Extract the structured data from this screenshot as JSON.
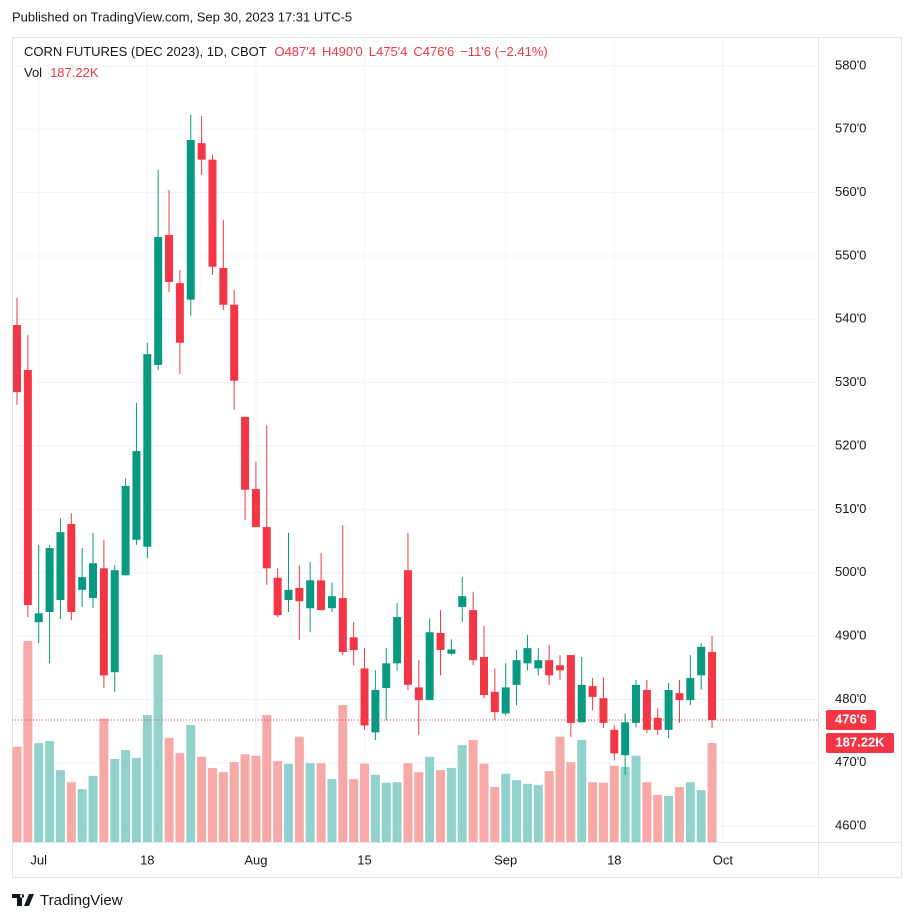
{
  "chart_data": {
    "type": "candlestick",
    "published": "Published on TradingView.com, Sep 30, 2023 17:31 UTC-5",
    "title": "CORN FUTURES (DEC 2023), 1D, CBOT",
    "open_label": "O487'4",
    "high_label": "H490'0",
    "low_label": "L475'4",
    "close_label": "C476'6",
    "change_label": "−11'6 (−2.41%)",
    "volume_title": "Vol",
    "volume_label": "187.22K",
    "last_price_label": "476'6",
    "brand": "TradingView",
    "categories": [
      null,
      null,
      "Jul",
      null,
      null,
      null,
      null,
      null,
      null,
      null,
      null,
      null,
      "18",
      null,
      null,
      null,
      null,
      null,
      null,
      null,
      null,
      null,
      "Aug",
      null,
      null,
      null,
      null,
      null,
      null,
      null,
      null,
      null,
      "15",
      null,
      null,
      null,
      null,
      null,
      null,
      null,
      null,
      null,
      null,
      null,
      null,
      "Sep",
      null,
      null,
      null,
      null,
      null,
      null,
      null,
      null,
      null,
      "18",
      null,
      null,
      null,
      null,
      null,
      null,
      null,
      null,
      null,
      "Oct"
    ],
    "open": [
      539.1,
      532.0,
      492.2,
      493.8,
      495.7,
      507.7,
      497.3,
      496.0,
      500.7,
      484.3,
      499.6,
      505.2,
      504.1,
      532.8,
      553.3,
      545.7,
      543.1,
      567.8,
      565.2,
      548.1,
      542.3,
      524.6,
      513.2,
      507.2,
      499.2,
      495.7,
      497.6,
      494.4,
      498.8,
      494.4,
      496.0,
      489.8,
      484.9,
      474.8,
      481.8,
      485.7,
      500.4,
      481.9,
      479.9,
      490.5,
      487.2,
      494.6,
      494.1,
      486.7,
      481.2,
      477.8,
      482.3,
      485.7,
      484.9,
      486.2,
      485.4,
      487.0,
      476.4,
      482.1,
      480.2,
      475.2,
      471.2,
      476.3,
      481.5,
      477.1,
      475.2,
      481.0,
      479.9,
      483.8,
      487.5,
      null
    ],
    "high": [
      543.4,
      537.5,
      504.4,
      504.4,
      508.6,
      509.4,
      503.9,
      506.3,
      505.2,
      501.2,
      514.9,
      526.8,
      536.3,
      563.6,
      560.4,
      547.8,
      572.3,
      572.1,
      566.0,
      555.7,
      544.6,
      524.6,
      517.5,
      523.3,
      500.7,
      506.3,
      501.2,
      501.7,
      503.1,
      498.5,
      507.5,
      492.2,
      488.1,
      484.6,
      488.1,
      495.2,
      506.3,
      486.2,
      492.8,
      494.1,
      489.5,
      499.3,
      497.0,
      491.6,
      484.9,
      485.7,
      487.8,
      490.2,
      488.1,
      488.6,
      487.0,
      487.0,
      486.7,
      483.4,
      483.5,
      475.9,
      477.8,
      483.1,
      483.1,
      478.6,
      482.6,
      483.1,
      487.0,
      488.9,
      490.0,
      null
    ],
    "low": [
      526.5,
      493.0,
      488.9,
      485.7,
      492.7,
      492.5,
      494.6,
      494.4,
      481.8,
      481.2,
      499.6,
      504.4,
      502.3,
      532.0,
      544.3,
      531.4,
      540.5,
      562.8,
      547.0,
      541.5,
      525.7,
      508.3,
      507.2,
      498.1,
      493.0,
      493.8,
      489.4,
      490.6,
      494.1,
      493.8,
      487.0,
      485.4,
      475.2,
      473.6,
      476.7,
      484.6,
      481.5,
      474.4,
      479.9,
      483.8,
      487.0,
      492.2,
      485.4,
      480.2,
      476.7,
      477.5,
      479.1,
      484.6,
      483.8,
      482.3,
      483.1,
      474.1,
      476.4,
      478.3,
      475.5,
      470.4,
      468.1,
      475.6,
      474.7,
      474.4,
      473.9,
      476.3,
      479.1,
      481.5,
      475.5,
      null
    ],
    "close": [
      528.5,
      494.9,
      493.6,
      503.9,
      506.4,
      493.8,
      499.3,
      501.5,
      483.8,
      500.4,
      513.7,
      519.2,
      534.5,
      553.0,
      545.9,
      536.3,
      568.3,
      565.2,
      548.3,
      542.3,
      530.3,
      513.1,
      507.2,
      500.7,
      493.3,
      497.3,
      495.5,
      498.8,
      494.1,
      496.3,
      487.5,
      487.8,
      475.9,
      481.5,
      485.7,
      493.0,
      482.3,
      479.9,
      490.6,
      487.8,
      487.9,
      496.3,
      486.2,
      480.7,
      478.0,
      481.9,
      486.2,
      488.1,
      486.2,
      483.8,
      484.6,
      476.3,
      482.3,
      480.4,
      476.3,
      471.5,
      476.4,
      482.3,
      475.2,
      475.2,
      481.5,
      479.9,
      483.4,
      488.3,
      476.75,
      null
    ],
    "volume": [
      180000,
      380000,
      187000,
      191000,
      136000,
      113000,
      100000,
      125000,
      233000,
      157000,
      174000,
      159000,
      240000,
      354000,
      197000,
      168000,
      221000,
      161000,
      140000,
      132000,
      151000,
      166000,
      163000,
      240000,
      153000,
      148000,
      199000,
      149000,
      149000,
      119000,
      259000,
      119000,
      148000,
      127000,
      112000,
      113000,
      149000,
      132000,
      161000,
      136000,
      140000,
      183000,
      193000,
      148000,
      104000,
      129000,
      117000,
      110000,
      108000,
      134000,
      199000,
      151000,
      193000,
      113000,
      112000,
      144000,
      142000,
      163000,
      113000,
      89000,
      87000,
      104000,
      113000,
      98000,
      187220,
      null
    ],
    "up_color": "#089981",
    "down_color": "#f23645",
    "volume_up_color": "#92d2cc",
    "volume_down_color": "#f7a9a7",
    "ylim": [
      457.5,
      584.4
    ],
    "yticks": [
      {
        "value": 460,
        "label": "460'0"
      },
      {
        "value": 470,
        "label": "470'0"
      },
      {
        "value": 480,
        "label": "480'0"
      },
      {
        "value": 490,
        "label": "490'0"
      },
      {
        "value": 500,
        "label": "500'0"
      },
      {
        "value": 510,
        "label": "510'0"
      },
      {
        "value": 520,
        "label": "520'0"
      },
      {
        "value": 530,
        "label": "530'0"
      },
      {
        "value": 540,
        "label": "540'0"
      },
      {
        "value": 550,
        "label": "550'0"
      },
      {
        "value": 560,
        "label": "560'0"
      },
      {
        "value": 570,
        "label": "570'0"
      },
      {
        "value": 580,
        "label": "580'0"
      }
    ],
    "y2lim": [
      0,
      1520000
    ],
    "grid": true
  }
}
